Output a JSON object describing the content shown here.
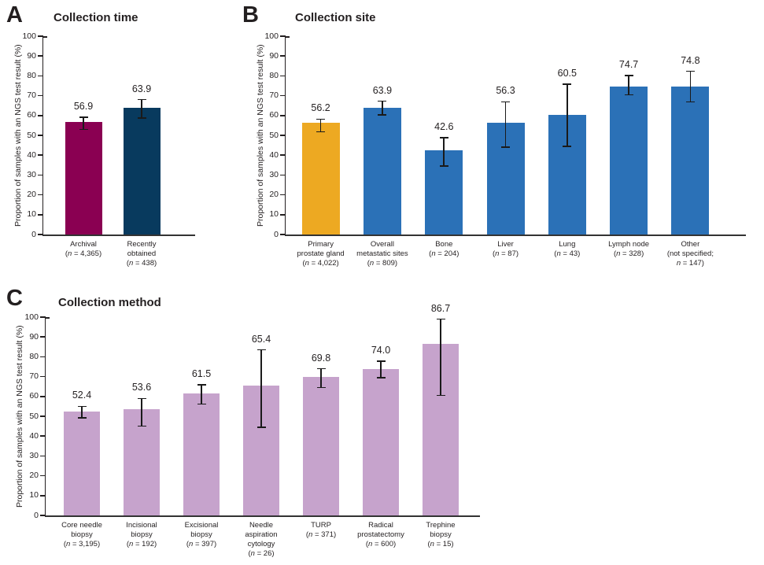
{
  "figure": {
    "background": "#FFFFFF",
    "text_color": "#231F20",
    "axis_color": "#231F20",
    "error_bar_color": "#1A1A1A"
  },
  "chart_data": [
    {
      "type": "bar",
      "panel_label": "A",
      "title": "Collection time",
      "ylabel": "Proportion of samples with an NGS test result (%)",
      "xlabel": "",
      "ylim": [
        0,
        100
      ],
      "ytick_step": 10,
      "grid": false,
      "legend": "none",
      "categories": [
        [
          "Archival",
          "(n = 4,365)"
        ],
        [
          "Recently",
          "obtained",
          "(n = 438)"
        ]
      ],
      "values": [
        56.9,
        63.9
      ],
      "error_low": [
        53.0,
        58.8
      ],
      "error_high": [
        59.2,
        68.0
      ],
      "bar_colors": [
        "#8A0052",
        "#083A5E"
      ]
    },
    {
      "type": "bar",
      "panel_label": "B",
      "title": "Collection site",
      "ylabel": "Proportion of samples with an NGS test result (%)",
      "xlabel": "",
      "ylim": [
        0,
        100
      ],
      "ytick_step": 10,
      "grid": false,
      "legend": "none",
      "categories": [
        [
          "Primary",
          "prostate gland",
          "(n = 4,022)"
        ],
        [
          "Overall",
          "metastatic sites",
          "(n = 809)"
        ],
        [
          "Bone",
          "(n = 204)"
        ],
        [
          "Liver",
          "(n = 87)"
        ],
        [
          "Lung",
          "(n = 43)"
        ],
        [
          "Lymph node",
          "(n = 328)"
        ],
        [
          "Other",
          "(not specified;",
          "n = 147)"
        ]
      ],
      "values": [
        56.2,
        63.9,
        42.6,
        56.3,
        60.5,
        74.7,
        74.8
      ],
      "error_low": [
        51.8,
        60.4,
        34.5,
        44.1,
        44.5,
        70.5,
        66.8
      ],
      "error_high": [
        58.2,
        67.2,
        48.7,
        66.9,
        75.8,
        80.2,
        82.3
      ],
      "bar_colors": [
        "#EDA922",
        "#2B71B7",
        "#2B71B7",
        "#2B71B7",
        "#2B71B7",
        "#2B71B7",
        "#2B71B7"
      ]
    },
    {
      "type": "bar",
      "panel_label": "C",
      "title": "Collection method",
      "ylabel": "Proportion of samples with an NGS test result (%)",
      "xlabel": "",
      "ylim": [
        0,
        100
      ],
      "ytick_step": 10,
      "grid": false,
      "legend": "none",
      "categories": [
        [
          "Core needle",
          "biopsy",
          "(n = 3,195)"
        ],
        [
          "Incisional",
          "biopsy",
          "(n = 192)"
        ],
        [
          "Excisional",
          "biopsy",
          "(n = 397)"
        ],
        [
          "Needle",
          "aspiration",
          "cytology",
          "(n = 26)"
        ],
        [
          "TURP",
          "(n = 371)"
        ],
        [
          "Radical",
          "prostatectomy",
          "(n = 600)"
        ],
        [
          "Trephine",
          "biopsy",
          "(n = 15)"
        ]
      ],
      "values": [
        52.4,
        53.6,
        61.5,
        65.4,
        69.8,
        74.0,
        86.7
      ],
      "error_low": [
        49.3,
        45.0,
        56.2,
        44.5,
        64.5,
        69.5,
        60.5
      ],
      "error_high": [
        55.0,
        59.0,
        65.8,
        83.5,
        74.0,
        77.8,
        99.0
      ],
      "bar_colors": [
        "#C6A3CC",
        "#C6A3CC",
        "#C6A3CC",
        "#C6A3CC",
        "#C6A3CC",
        "#C6A3CC",
        "#C6A3CC"
      ]
    }
  ]
}
